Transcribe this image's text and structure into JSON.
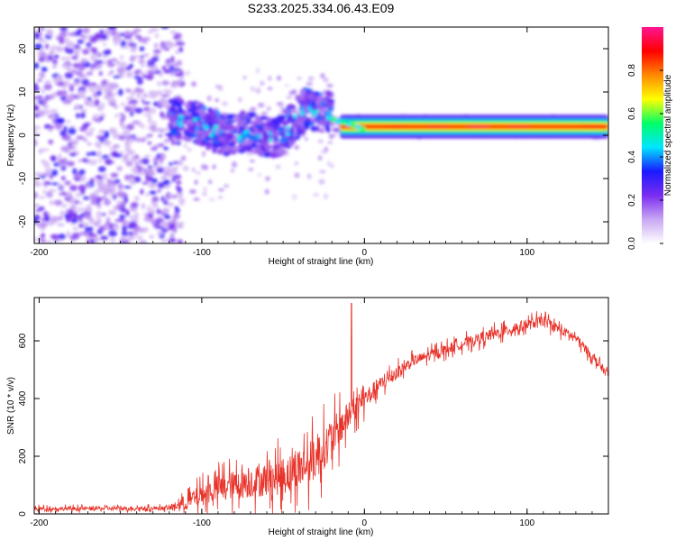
{
  "title": "S233.2025.334.06.43.E09",
  "chart_data": [
    {
      "type": "heatmap",
      "xlabel": "Height of straight line (km)",
      "ylabel": "Frequency (Hz)",
      "xlim": [
        -203,
        150
      ],
      "ylim": [
        -25,
        25
      ],
      "xticks": [
        -200,
        -100,
        0,
        100
      ],
      "yticks": [
        -20,
        -10,
        0,
        10,
        20
      ],
      "colorbar": {
        "label": "Normalized spectral amplitude",
        "range": [
          0,
          1
        ],
        "ticks": [
          0.0,
          0.2,
          0.4,
          0.6,
          0.8
        ],
        "colors": [
          "#ffffff",
          "#c9a7f3",
          "#7a2cf0",
          "#1a1aff",
          "#00e5ff",
          "#00ff66",
          "#ffff00",
          "#ff8800",
          "#ff0000",
          "#ff1493"
        ]
      },
      "features": {
        "noise_region_x": [
          -203,
          -112
        ],
        "noise_amplitude": 0.25,
        "wander_region_x": [
          -120,
          -20
        ],
        "wander_freq_hz": [
          4,
          3,
          0,
          1,
          -1,
          6,
          5
        ],
        "steady_line_from_x": -20,
        "steady_line_freq_hz": 2.0,
        "steady_line_amplitude": 0.85
      }
    },
    {
      "type": "line",
      "xlabel": "Height of straight line (km)",
      "ylabel": "SNR (10 * v/v)",
      "xlim": [
        -203,
        150
      ],
      "ylim": [
        0,
        750
      ],
      "xticks": [
        -200,
        -100,
        0,
        100
      ],
      "yticks": [
        0,
        200,
        400,
        600
      ],
      "color": "#e8332a",
      "trend": {
        "x": [
          -203,
          -120,
          -110,
          -90,
          -70,
          -50,
          -30,
          -15,
          -5,
          10,
          30,
          60,
          90,
          110,
          130,
          150
        ],
        "snr": [
          18,
          20,
          40,
          90,
          110,
          130,
          190,
          300,
          370,
          450,
          530,
          590,
          640,
          670,
          610,
          480
        ],
        "noise_spread": [
          15,
          15,
          60,
          100,
          120,
          140,
          170,
          140,
          90,
          60,
          40,
          40,
          45,
          40,
          35,
          30
        ]
      },
      "spike": {
        "x": -8,
        "snr": 730
      }
    }
  ]
}
